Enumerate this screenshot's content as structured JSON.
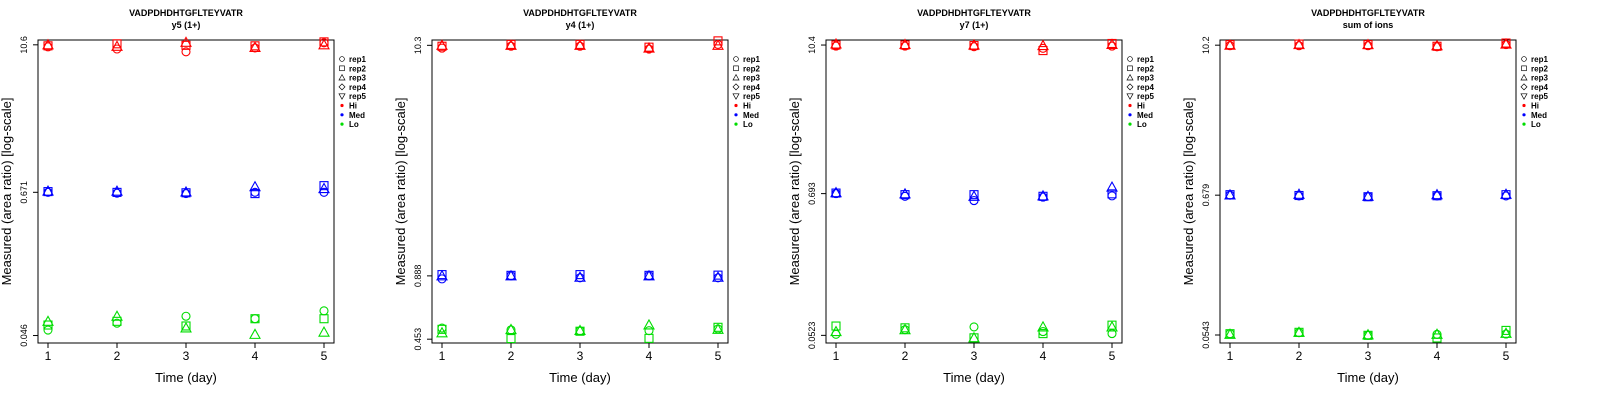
{
  "chart_data": [
    {
      "type": "scatter",
      "title": "VADPDHDHTGFLTEYVATR",
      "subtitle": "y5 (1+)",
      "xlabel": "Time (day)",
      "ylabel": "Measured (area ratio) [log-scale]",
      "x_ticks": [
        "1",
        "2",
        "3",
        "4",
        "5"
      ],
      "y_ticks": [
        {
          "value": 0.046,
          "label": "0.046"
        },
        {
          "value": 0.671,
          "label": "0.671"
        },
        {
          "value": 10.6,
          "label": "10.6"
        }
      ],
      "ylim": [
        0.04,
        11.6
      ],
      "log_scale_y": true,
      "legend_placement": "right",
      "legend": {
        "reps": [
          {
            "label": "rep1",
            "shape": "circle"
          },
          {
            "label": "rep2",
            "shape": "square"
          },
          {
            "label": "rep3",
            "shape": "triangle-up"
          },
          {
            "label": "rep4",
            "shape": "diamond"
          },
          {
            "label": "rep5",
            "shape": "triangle-down"
          }
        ],
        "levels": [
          {
            "label": "Hi",
            "color": "#ff0000"
          },
          {
            "label": "Med",
            "color": "#0000ff"
          },
          {
            "label": "Lo",
            "color": "#00dd00"
          }
        ]
      },
      "series": [
        {
          "level": "Hi",
          "rep": "rep1",
          "x": [
            1,
            2,
            3,
            4,
            5
          ],
          "y": [
            10.2,
            9.8,
            9.3,
            10.0,
            11.0
          ]
        },
        {
          "level": "Hi",
          "rep": "rep2",
          "x": [
            1,
            2,
            3,
            4,
            5
          ],
          "y": [
            10.4,
            10.8,
            10.5,
            10.4,
            11.2
          ]
        },
        {
          "level": "Hi",
          "rep": "rep3",
          "x": [
            1,
            2,
            3,
            4,
            5
          ],
          "y": [
            10.6,
            10.3,
            11.1,
            10.1,
            10.6
          ]
        },
        {
          "level": "Med",
          "rep": "rep1",
          "x": [
            1,
            2,
            3,
            4,
            5
          ],
          "y": [
            0.671,
            0.66,
            0.655,
            0.671,
            0.671
          ]
        },
        {
          "level": "Med",
          "rep": "rep2",
          "x": [
            1,
            2,
            3,
            4,
            5
          ],
          "y": [
            0.68,
            0.67,
            0.665,
            0.655,
            0.76
          ]
        },
        {
          "level": "Med",
          "rep": "rep3",
          "x": [
            1,
            2,
            3,
            4,
            5
          ],
          "y": [
            0.686,
            0.685,
            0.675,
            0.745,
            0.72
          ]
        },
        {
          "level": "Lo",
          "rep": "rep1",
          "x": [
            1,
            2,
            3,
            4,
            5
          ],
          "y": [
            0.051,
            0.058,
            0.066,
            0.063,
            0.073
          ]
        },
        {
          "level": "Lo",
          "rep": "rep2",
          "x": [
            1,
            2,
            3,
            4,
            5
          ],
          "y": [
            0.056,
            0.06,
            0.055,
            0.063,
            0.063
          ]
        },
        {
          "level": "Lo",
          "rep": "rep3",
          "x": [
            1,
            2,
            3,
            4,
            5
          ],
          "y": [
            0.06,
            0.066,
            0.053,
            0.047,
            0.049
          ]
        }
      ]
    },
    {
      "type": "scatter",
      "title": "VADPDHDHTGFLTEYVATR",
      "subtitle": "y4 (1+)",
      "xlabel": "Time (day)",
      "ylabel": "Measured (area ratio) [log-scale]",
      "x_ticks": [
        "1",
        "2",
        "3",
        "4",
        "5"
      ],
      "y_ticks": [
        {
          "value": 0.453,
          "label": "0.453"
        },
        {
          "value": 0.888,
          "label": "0.888"
        },
        {
          "value": 10.3,
          "label": "10.3"
        }
      ],
      "ylim": [
        0.435,
        10.9
      ],
      "log_scale_y": true,
      "legend_placement": "right",
      "legend": {
        "reps": [
          {
            "label": "rep1",
            "shape": "circle"
          },
          {
            "label": "rep2",
            "shape": "square"
          },
          {
            "label": "rep3",
            "shape": "triangle-up"
          },
          {
            "label": "rep4",
            "shape": "diamond"
          },
          {
            "label": "rep5",
            "shape": "triangle-down"
          }
        ],
        "levels": [
          {
            "label": "Hi",
            "color": "#ff0000"
          },
          {
            "label": "Med",
            "color": "#0000ff"
          },
          {
            "label": "Lo",
            "color": "#00dd00"
          }
        ]
      },
      "series": [
        {
          "level": "Hi",
          "rep": "rep1",
          "x": [
            1,
            2,
            3,
            4,
            5
          ],
          "y": [
            10.0,
            10.2,
            10.2,
            9.9,
            10.4
          ]
        },
        {
          "level": "Hi",
          "rep": "rep2",
          "x": [
            1,
            2,
            3,
            4,
            5
          ],
          "y": [
            10.2,
            10.4,
            10.4,
            10.1,
            10.8
          ]
        },
        {
          "level": "Hi",
          "rep": "rep3",
          "x": [
            1,
            2,
            3,
            4,
            5
          ],
          "y": [
            10.3,
            10.3,
            10.3,
            10.0,
            10.3
          ]
        },
        {
          "level": "Med",
          "rep": "rep1",
          "x": [
            1,
            2,
            3,
            4,
            5
          ],
          "y": [
            0.86,
            0.888,
            0.87,
            0.888,
            0.87
          ]
        },
        {
          "level": "Med",
          "rep": "rep2",
          "x": [
            1,
            2,
            3,
            4,
            5
          ],
          "y": [
            0.9,
            0.893,
            0.9,
            0.893,
            0.895
          ]
        },
        {
          "level": "Med",
          "rep": "rep3",
          "x": [
            1,
            2,
            3,
            4,
            5
          ],
          "y": [
            0.888,
            0.888,
            0.875,
            0.888,
            0.875
          ]
        },
        {
          "level": "Lo",
          "rep": "rep1",
          "x": [
            1,
            2,
            3,
            4,
            5
          ],
          "y": [
            0.51,
            0.5,
            0.495,
            0.496,
            0.505
          ]
        },
        {
          "level": "Lo",
          "rep": "rep2",
          "x": [
            1,
            2,
            3,
            4,
            5
          ],
          "y": [
            0.503,
            0.456,
            0.493,
            0.457,
            0.514
          ]
        },
        {
          "level": "Lo",
          "rep": "rep3",
          "x": [
            1,
            2,
            3,
            4,
            5
          ],
          "y": [
            0.485,
            0.502,
            0.497,
            0.527,
            0.503
          ]
        }
      ]
    },
    {
      "type": "scatter",
      "title": "VADPDHDHTGFLTEYVATR",
      "subtitle": "y7 (1+)",
      "xlabel": "Time (day)",
      "ylabel": "Measured (area ratio) [log-scale]",
      "x_ticks": [
        "1",
        "2",
        "3",
        "4",
        "5"
      ],
      "y_ticks": [
        {
          "value": 0.0523,
          "label": "0.0523"
        },
        {
          "value": 0.693,
          "label": "0.693"
        },
        {
          "value": 10.4,
          "label": "10.4"
        }
      ],
      "ylim": [
        0.0455,
        11.4
      ],
      "log_scale_y": true,
      "legend_placement": "right",
      "legend": {
        "reps": [
          {
            "label": "rep1",
            "shape": "circle"
          },
          {
            "label": "rep2",
            "shape": "square"
          },
          {
            "label": "rep3",
            "shape": "triangle-up"
          },
          {
            "label": "rep4",
            "shape": "diamond"
          },
          {
            "label": "rep5",
            "shape": "triangle-down"
          }
        ],
        "levels": [
          {
            "label": "Hi",
            "color": "#ff0000"
          },
          {
            "label": "Med",
            "color": "#0000ff"
          },
          {
            "label": "Lo",
            "color": "#00dd00"
          }
        ]
      },
      "series": [
        {
          "level": "Hi",
          "rep": "rep1",
          "x": [
            1,
            2,
            3,
            4,
            5
          ],
          "y": [
            10.2,
            10.2,
            10.1,
            9.8,
            10.2
          ]
        },
        {
          "level": "Hi",
          "rep": "rep2",
          "x": [
            1,
            2,
            3,
            4,
            5
          ],
          "y": [
            10.4,
            10.4,
            10.3,
            9.4,
            10.7
          ]
        },
        {
          "level": "Hi",
          "rep": "rep3",
          "x": [
            1,
            2,
            3,
            4,
            5
          ],
          "y": [
            10.6,
            10.5,
            10.4,
            10.3,
            10.5
          ]
        },
        {
          "level": "Med",
          "rep": "rep1",
          "x": [
            1,
            2,
            3,
            4,
            5
          ],
          "y": [
            0.693,
            0.66,
            0.61,
            0.65,
            0.665
          ]
        },
        {
          "level": "Med",
          "rep": "rep2",
          "x": [
            1,
            2,
            3,
            4,
            5
          ],
          "y": [
            0.7,
            0.68,
            0.68,
            0.66,
            0.69
          ]
        },
        {
          "level": "Med",
          "rep": "rep3",
          "x": [
            1,
            2,
            3,
            4,
            5
          ],
          "y": [
            0.705,
            0.69,
            0.66,
            0.665,
            0.78
          ]
        },
        {
          "level": "Lo",
          "rep": "rep1",
          "x": [
            1,
            2,
            3,
            4,
            5
          ],
          "y": [
            0.0533,
            0.058,
            0.061,
            0.056,
            0.054
          ]
        },
        {
          "level": "Lo",
          "rep": "rep2",
          "x": [
            1,
            2,
            3,
            4,
            5
          ],
          "y": [
            0.062,
            0.06,
            0.05,
            0.054,
            0.063
          ]
        },
        {
          "level": "Lo",
          "rep": "rep3",
          "x": [
            1,
            2,
            3,
            4,
            5
          ],
          "y": [
            0.056,
            0.058,
            0.05,
            0.061,
            0.061
          ]
        }
      ]
    },
    {
      "type": "scatter",
      "title": "VADPDHDHTGFLTEYVATR",
      "subtitle": "sum of ions",
      "xlabel": "Time (day)",
      "ylabel": "Measured (area ratio) [log-scale]",
      "x_ticks": [
        "1",
        "2",
        "3",
        "4",
        "5"
      ],
      "y_ticks": [
        {
          "value": 0.0543,
          "label": "0.0543"
        },
        {
          "value": 0.679,
          "label": "0.679"
        },
        {
          "value": 10.2,
          "label": "10.2"
        }
      ],
      "ylim": [
        0.047,
        11.2
      ],
      "log_scale_y": true,
      "legend_placement": "right",
      "legend": {
        "reps": [
          {
            "label": "rep1",
            "shape": "circle"
          },
          {
            "label": "rep2",
            "shape": "square"
          },
          {
            "label": "rep3",
            "shape": "triangle-up"
          },
          {
            "label": "rep4",
            "shape": "diamond"
          },
          {
            "label": "rep5",
            "shape": "triangle-down"
          }
        ],
        "levels": [
          {
            "label": "Hi",
            "color": "#ff0000"
          },
          {
            "label": "Med",
            "color": "#0000ff"
          },
          {
            "label": "Lo",
            "color": "#00dd00"
          }
        ]
      },
      "series": [
        {
          "level": "Hi",
          "rep": "rep1",
          "x": [
            1,
            2,
            3,
            4,
            5
          ],
          "y": [
            10.1,
            10.1,
            10.1,
            9.9,
            10.3
          ]
        },
        {
          "level": "Hi",
          "rep": "rep2",
          "x": [
            1,
            2,
            3,
            4,
            5
          ],
          "y": [
            10.3,
            10.4,
            10.3,
            10.0,
            10.6
          ]
        },
        {
          "level": "Hi",
          "rep": "rep3",
          "x": [
            1,
            2,
            3,
            4,
            5
          ],
          "y": [
            10.2,
            10.3,
            10.3,
            10.1,
            10.4
          ]
        },
        {
          "level": "Med",
          "rep": "rep1",
          "x": [
            1,
            2,
            3,
            4,
            5
          ],
          "y": [
            0.679,
            0.67,
            0.662,
            0.67,
            0.67
          ]
        },
        {
          "level": "Med",
          "rep": "rep2",
          "x": [
            1,
            2,
            3,
            4,
            5
          ],
          "y": [
            0.685,
            0.675,
            0.66,
            0.672,
            0.685
          ]
        },
        {
          "level": "Med",
          "rep": "rep3",
          "x": [
            1,
            2,
            3,
            4,
            5
          ],
          "y": [
            0.682,
            0.69,
            0.665,
            0.685,
            0.69
          ]
        },
        {
          "level": "Lo",
          "rep": "rep1",
          "x": [
            1,
            2,
            3,
            4,
            5
          ],
          "y": [
            0.0556,
            0.0566,
            0.054,
            0.055,
            0.0553
          ]
        },
        {
          "level": "Lo",
          "rep": "rep2",
          "x": [
            1,
            2,
            3,
            4,
            5
          ],
          "y": [
            0.0556,
            0.057,
            0.054,
            0.0515,
            0.059
          ]
        },
        {
          "level": "Lo",
          "rep": "rep3",
          "x": [
            1,
            2,
            3,
            4,
            5
          ],
          "y": [
            0.055,
            0.057,
            0.0545,
            0.055,
            0.056
          ]
        }
      ]
    }
  ]
}
